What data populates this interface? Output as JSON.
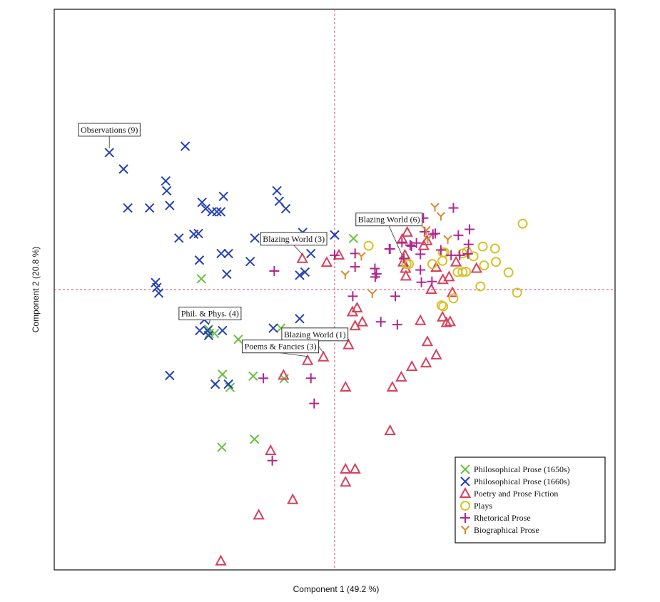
{
  "chart_data": {
    "type": "scatter",
    "title": "",
    "xlabel": "Component 1  (49.2 %)",
    "ylabel": "Component 2  (20.8 %)",
    "xlim": [
      -8.5,
      8.5
    ],
    "ylim": [
      -8,
      8
    ],
    "reference_lines": {
      "x": 0,
      "y": 0
    },
    "legend_position": "bottom-right",
    "series": [
      {
        "name": "Philosophical Prose (1650s)",
        "marker": "x",
        "color": "#6ac13f",
        "points": [
          [
            -4.04,
            0.31
          ],
          [
            -3.82,
            -1.13
          ],
          [
            -2.92,
            -1.42
          ],
          [
            -3.8,
            -1.25
          ],
          [
            -3.64,
            -1.25
          ],
          [
            -3.4,
            -2.42
          ],
          [
            -3.17,
            -2.79
          ],
          [
            -2.47,
            -2.47
          ],
          [
            -2.43,
            -4.27
          ],
          [
            -3.42,
            -4.5
          ],
          [
            -1.53,
            -2.54
          ],
          [
            0.57,
            1.46
          ],
          [
            -1.63,
            -1.1
          ]
        ]
      },
      {
        "name": "Philosophical Prose (1660s)",
        "marker": "x",
        "color": "#2540b5",
        "points": [
          [
            -6.83,
            3.91
          ],
          [
            -6.4,
            3.44
          ],
          [
            -4.53,
            4.09
          ],
          [
            -5.12,
            3.1
          ],
          [
            -5.09,
            2.82
          ],
          [
            -6.27,
            2.33
          ],
          [
            -5.61,
            2.33
          ],
          [
            -5.0,
            2.4
          ],
          [
            -4.02,
            2.49
          ],
          [
            -3.37,
            2.66
          ],
          [
            -3.72,
            2.22
          ],
          [
            -3.91,
            2.31
          ],
          [
            -3.57,
            2.22
          ],
          [
            -3.45,
            2.22
          ],
          [
            -4.72,
            1.47
          ],
          [
            -4.27,
            1.58
          ],
          [
            -4.13,
            1.6
          ],
          [
            -1.48,
            2.31
          ],
          [
            -1.75,
            2.82
          ],
          [
            -1.68,
            2.52
          ],
          [
            -2.42,
            1.47
          ],
          [
            -3.44,
            1.03
          ],
          [
            -3.22,
            1.03
          ],
          [
            -3.27,
            0.44
          ],
          [
            -4.1,
            0.84
          ],
          [
            -2.56,
            0.8
          ],
          [
            -0.97,
            1.63
          ],
          [
            -0.72,
            1.03
          ],
          [
            -0.9,
            0.5
          ],
          [
            -1.06,
            0.41
          ],
          [
            -5.43,
            0.2
          ],
          [
            -5.39,
            0.06
          ],
          [
            -5.33,
            -0.1
          ],
          [
            -3.95,
            -0.86
          ],
          [
            -4.09,
            -1.17
          ],
          [
            -3.85,
            -1.17
          ],
          [
            -3.82,
            -1.31
          ],
          [
            -3.4,
            -1.17
          ],
          [
            -1.86,
            -1.1
          ],
          [
            -1.06,
            -0.83
          ],
          [
            -5.0,
            -2.45
          ],
          [
            -3.62,
            -2.7
          ],
          [
            -3.22,
            -2.7
          ],
          [
            0.0,
            1.56
          ]
        ]
      },
      {
        "name": "Poetry and Prose Fiction",
        "marker": "triangle",
        "color": "#d8405d",
        "points": [
          [
            -0.98,
            0.88
          ],
          [
            -0.24,
            0.77
          ],
          [
            0.13,
            0.98
          ],
          [
            -0.82,
            -2.03
          ],
          [
            -0.34,
            -1.93
          ],
          [
            -1.55,
            -2.45
          ],
          [
            0.42,
            -1.58
          ],
          [
            0.62,
            -1.04
          ],
          [
            0.84,
            -0.93
          ],
          [
            0.54,
            -0.64
          ],
          [
            0.68,
            -0.53
          ],
          [
            0.33,
            -2.79
          ],
          [
            1.75,
            -2.79
          ],
          [
            2.02,
            -2.5
          ],
          [
            2.34,
            -2.2
          ],
          [
            2.77,
            -2.1
          ],
          [
            3.08,
            -1.87
          ],
          [
            2.81,
            -1.49
          ],
          [
            3.27,
            -0.79
          ],
          [
            2.6,
            -0.89
          ],
          [
            1.68,
            -4.03
          ],
          [
            0.33,
            -5.13
          ],
          [
            0.62,
            -5.13
          ],
          [
            0.33,
            -5.5
          ],
          [
            -1.94,
            -4.6
          ],
          [
            -1.27,
            -6.0
          ],
          [
            -2.3,
            -6.44
          ],
          [
            -3.45,
            -7.75
          ],
          [
            2.05,
            1.43
          ],
          [
            2.2,
            1.63
          ],
          [
            2.13,
            0.98
          ],
          [
            2.08,
            0.78
          ],
          [
            2.15,
            0.6
          ],
          [
            2.16,
            0.38
          ],
          [
            2.93,
            0.0
          ],
          [
            3.08,
            0.63
          ],
          [
            3.28,
            0.28
          ],
          [
            3.47,
            0.36
          ],
          [
            3.5,
            -0.92
          ],
          [
            3.39,
            -0.95
          ],
          [
            4.3,
            0.6
          ],
          [
            3.57,
            -0.09
          ],
          [
            3.68,
            0.78
          ],
          [
            2.7,
            1.25
          ],
          [
            2.8,
            1.39
          ]
        ]
      },
      {
        "name": "Plays",
        "marker": "circle",
        "color": "#d6c22a",
        "points": [
          [
            1.03,
            1.25
          ],
          [
            2.18,
            0.73
          ],
          [
            2.25,
            0.73
          ],
          [
            2.96,
            0.73
          ],
          [
            3.27,
            0.82
          ],
          [
            3.28,
            1.06
          ],
          [
            3.33,
            1.06
          ],
          [
            3.88,
            1.03
          ],
          [
            4.01,
            1.08
          ],
          [
            4.49,
            1.23
          ],
          [
            3.73,
            0.5
          ],
          [
            3.98,
            0.51
          ],
          [
            4.21,
            0.95
          ],
          [
            4.86,
            1.17
          ],
          [
            5.27,
            0.49
          ],
          [
            4.89,
            0.79
          ],
          [
            4.53,
            0.69
          ],
          [
            3.88,
            0.5
          ],
          [
            4.42,
            0.09
          ],
          [
            5.53,
            -0.09
          ],
          [
            3.6,
            -0.25
          ],
          [
            3.29,
            -0.48
          ],
          [
            3.24,
            -0.45
          ],
          [
            5.7,
            1.88
          ]
        ]
      },
      {
        "name": "Rhetorical Prose",
        "marker": "plus",
        "color": "#b0258f",
        "points": [
          [
            0.0,
            0.98
          ],
          [
            0.62,
            1.03
          ],
          [
            0.62,
            0.65
          ],
          [
            1.22,
            0.6
          ],
          [
            1.27,
            0.45
          ],
          [
            1.23,
            0.36
          ],
          [
            1.68,
            1.16
          ],
          [
            1.66,
            1.16
          ],
          [
            2.04,
            1.35
          ],
          [
            2.33,
            1.24
          ],
          [
            2.29,
            1.27
          ],
          [
            2.48,
            1.33
          ],
          [
            2.6,
            1.01
          ],
          [
            2.98,
            1.58
          ],
          [
            3.05,
            1.6
          ],
          [
            3.22,
            1.13
          ],
          [
            3.6,
            2.33
          ],
          [
            3.75,
            1.55
          ],
          [
            3.53,
            0.98
          ],
          [
            4.09,
            1.72
          ],
          [
            4.06,
            1.29
          ],
          [
            4.04,
            1.02
          ],
          [
            3.79,
            0.98
          ],
          [
            2.1,
            0.89
          ],
          [
            2.6,
            0.56
          ],
          [
            2.63,
            0.21
          ],
          [
            2.95,
            0.23
          ],
          [
            1.84,
            -0.19
          ],
          [
            0.55,
            -0.19
          ],
          [
            1.4,
            -0.92
          ],
          [
            1.9,
            -1.0
          ],
          [
            -1.83,
            0.53
          ],
          [
            -0.72,
            -2.53
          ],
          [
            -0.62,
            -3.25
          ],
          [
            -1.89,
            -4.88
          ],
          [
            -2.16,
            -2.53
          ],
          [
            2.69,
            2.04
          ],
          [
            2.73,
            1.65
          ]
        ]
      },
      {
        "name": "Biographical Prose",
        "marker": "Y",
        "color": "#d98a2c",
        "points": [
          [
            0.81,
            0.95
          ],
          [
            0.32,
            0.42
          ],
          [
            1.14,
            -0.12
          ],
          [
            2.78,
            1.69
          ],
          [
            3.04,
            2.35
          ],
          [
            3.22,
            2.09
          ],
          [
            3.43,
            1.43
          ],
          [
            2.82,
            1.44
          ]
        ]
      }
    ],
    "annotations": [
      {
        "text": "Observations (9)",
        "point": [
          -6.83,
          3.91
        ]
      },
      {
        "text": "Blazing World (3)",
        "point": [
          -0.98,
          0.88
        ]
      },
      {
        "text": "Blazing World (6)",
        "point": [
          2.08,
          0.78
        ]
      },
      {
        "text": "Blazing World (1)",
        "point": [
          -0.34,
          -1.93
        ]
      },
      {
        "text": "Poems & Fancies (3)",
        "point": [
          -0.82,
          -2.03
        ]
      },
      {
        "text": "Phil. & Phys. (4)",
        "point": [
          -3.82,
          -1.13
        ]
      }
    ]
  }
}
